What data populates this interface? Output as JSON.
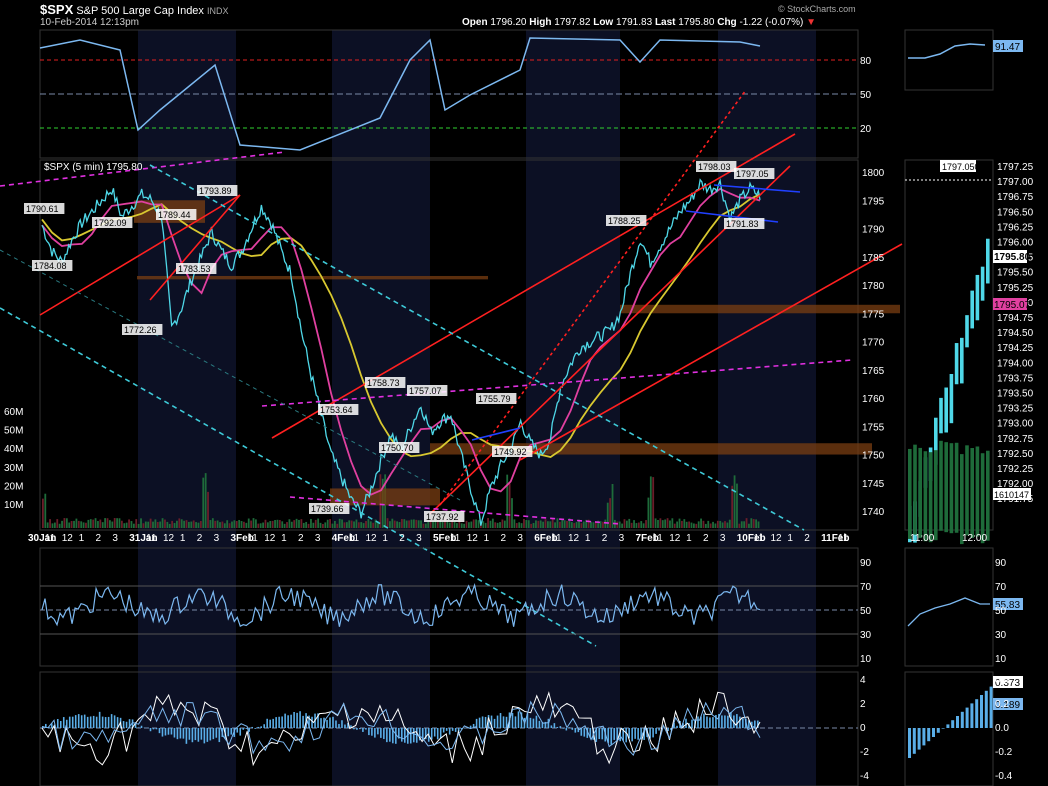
{
  "header": {
    "symbol": "$SPX",
    "name": "S&P 500 Large Cap Index",
    "exchange": "INDX",
    "datetime": "10-Feb-2014 12:13pm",
    "open_label": "Open",
    "open": "1796.20",
    "high_label": "High",
    "high": "1797.82",
    "low_label": "Low",
    "low": "1791.83",
    "last_label": "Last",
    "last": "1795.80",
    "chg_label": "Chg",
    "chg": "-1.22 (-0.07%)",
    "watermark": "© StockCharts.com"
  },
  "price_panel": {
    "legend": "$SPX (5 min) 1795.80",
    "volume_ticks": [
      "60M",
      "50M",
      "40M",
      "30M",
      "20M",
      "10M"
    ],
    "right_ticks": [
      1800,
      1795,
      1790,
      1785,
      1780,
      1775,
      1770,
      1765,
      1760,
      1755,
      1750,
      1745,
      1740
    ]
  },
  "x_axis": {
    "labels": [
      "30Jan",
      "11",
      "12",
      "1",
      "2",
      "3",
      "31Jan",
      "11",
      "12",
      "1",
      "2",
      "3",
      "3Feb",
      "11",
      "12",
      "1",
      "2",
      "3",
      "4Feb",
      "11",
      "12",
      "1",
      "2",
      "3",
      "5Feb",
      "11",
      "12",
      "1",
      "2",
      "3",
      "6Feb",
      "11",
      "12",
      "1",
      "2",
      "3",
      "7Feb",
      "11",
      "12",
      "1",
      "2",
      "3",
      "10Feb",
      "11",
      "12",
      "1",
      "2",
      "11Feb",
      "11"
    ]
  },
  "rsi_top": {
    "ticks": [
      "80",
      "50",
      "20"
    ],
    "overbought": 80,
    "oversold": 20,
    "mini_value": "91.47"
  },
  "rsi_bottom": {
    "ticks": [
      "90",
      "70",
      "50",
      "30",
      "10"
    ],
    "mini_value": "55.83"
  },
  "macd": {
    "ticks": [
      "4",
      "2",
      "0",
      "-2",
      "-4"
    ],
    "mini_ticks": [
      "0.4",
      "0.2",
      "0.0",
      "-0.2",
      "-0.4"
    ],
    "mini_values": [
      "0.373",
      "0.189"
    ]
  },
  "mini_chart": {
    "ticks": [
      "1797.25",
      "1797.00",
      "1796.75",
      "1796.50",
      "1796.25",
      "1796.00",
      "1795.75",
      "1795.50",
      "1795.25",
      "1795.00",
      "1794.75",
      "1794.50",
      "1794.25",
      "1794.00",
      "1793.75",
      "1793.50",
      "1793.25",
      "1793.00",
      "1792.75",
      "1792.50",
      "1792.25",
      "1792.00",
      "1791.75"
    ],
    "high_label": "1797.050",
    "last_label": "1795.80",
    "ma_label": "1795.07",
    "volume_label": "1610147",
    "time_labels": [
      "11:00",
      "12:00"
    ]
  },
  "chart_data": {
    "type": "line",
    "title": "$SPX S&P 500 Large Cap Index",
    "ylim": [
      1735,
      1802
    ],
    "annotations": [
      {
        "label": "1790.61",
        "value": 1790.61
      },
      {
        "label": "1784.08",
        "value": 1784.08
      },
      {
        "label": "1792.09",
        "value": 1792.09
      },
      {
        "label": "1772.26",
        "value": 1772.26
      },
      {
        "label": "1789.44",
        "value": 1789.44
      },
      {
        "label": "1783.53",
        "value": 1783.53
      },
      {
        "label": "1793.89",
        "value": 1793.89
      },
      {
        "label": "1739.66",
        "value": 1739.66
      },
      {
        "label": "1753.64",
        "value": 1753.64
      },
      {
        "label": "1758.73",
        "value": 1758.73
      },
      {
        "label": "1750.70",
        "value": 1750.7
      },
      {
        "label": "1757.07",
        "value": 1757.07
      },
      {
        "label": "1737.92",
        "value": 1737.92
      },
      {
        "label": "1755.79",
        "value": 1755.79
      },
      {
        "label": "1749.92",
        "value": 1749.92
      },
      {
        "label": "1788.25",
        "value": 1788.25
      },
      {
        "label": "1798.03",
        "value": 1798.03
      },
      {
        "label": "1797.05",
        "value": 1797.05
      },
      {
        "label": "1791.83",
        "value": 1791.83
      }
    ],
    "price_series": [
      1790.6,
      1786,
      1784.1,
      1788,
      1791,
      1793,
      1795,
      1797,
      1792.1,
      1794,
      1796,
      1795,
      1792,
      1772.3,
      1776,
      1781,
      1785,
      1789.4,
      1786,
      1783.5,
      1786,
      1790,
      1793.9,
      1791,
      1786,
      1782,
      1772,
      1764,
      1757,
      1750,
      1746,
      1742,
      1739.7,
      1744,
      1749,
      1753.6,
      1750.7,
      1755,
      1758.7,
      1754,
      1756,
      1757.1,
      1750,
      1744,
      1737.9,
      1744,
      1748,
      1751,
      1755.8,
      1752,
      1749.9,
      1753,
      1762,
      1766,
      1769,
      1770,
      1771,
      1772,
      1775,
      1782,
      1788.3,
      1784,
      1787,
      1790,
      1793,
      1795,
      1798,
      1797,
      1798,
      1791.8,
      1795,
      1797.1,
      1795.8
    ],
    "series": [
      {
        "name": "$SPX (5 min)",
        "values": [
          1790.6,
          1786,
          1784.1,
          1788,
          1791,
          1793,
          1795,
          1797,
          1792.1,
          1794,
          1796,
          1795,
          1792,
          1772.3,
          1776,
          1781,
          1785,
          1789.4,
          1786,
          1783.5,
          1786,
          1790,
          1793.9,
          1791,
          1786,
          1782,
          1772,
          1764,
          1757,
          1750,
          1746,
          1742,
          1739.7,
          1744,
          1749,
          1753.6,
          1750.7,
          1755,
          1758.7,
          1754,
          1756,
          1757.1,
          1750,
          1744,
          1737.9,
          1744,
          1748,
          1751,
          1755.8,
          1752,
          1749.9,
          1753,
          1762,
          1766,
          1769,
          1770,
          1771,
          1772,
          1775,
          1782,
          1788.3,
          1784,
          1787,
          1790,
          1793,
          1795,
          1798,
          1797,
          1798,
          1791.8,
          1795,
          1797.1,
          1795.8
        ]
      }
    ],
    "colors": {
      "price": "#4fd8e8",
      "ma_fast": "#e040a0",
      "ma_slow": "#d8c830",
      "trend": "#ff2020",
      "rsi": "#7cb8f0",
      "support": "#8b4a1a"
    }
  }
}
